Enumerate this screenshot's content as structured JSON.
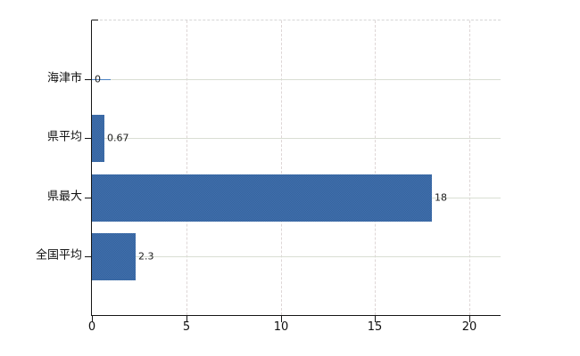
{
  "chart_data": {
    "type": "bar",
    "orientation": "horizontal",
    "title": "",
    "xlabel": "",
    "ylabel": "",
    "categories": [
      "海津市",
      "県平均",
      "県最大",
      "全国平均"
    ],
    "values": [
      0,
      0.67,
      18,
      2.3
    ],
    "value_labels": [
      "0",
      "0.67",
      "18",
      "2.3"
    ],
    "x_ticks": [
      0,
      5,
      10,
      15,
      20
    ],
    "x_tick_labels": [
      "0",
      "5",
      "10",
      "15",
      "20"
    ],
    "xlim": [
      0,
      21.65
    ],
    "grid": true,
    "legend": false,
    "bar_color": "#3b6aa7",
    "grid_color_horizontal": "#d9ded3",
    "grid_color_vertical": "#ded6d6",
    "axis_color": "#161616",
    "background_color": "#ffffff"
  }
}
